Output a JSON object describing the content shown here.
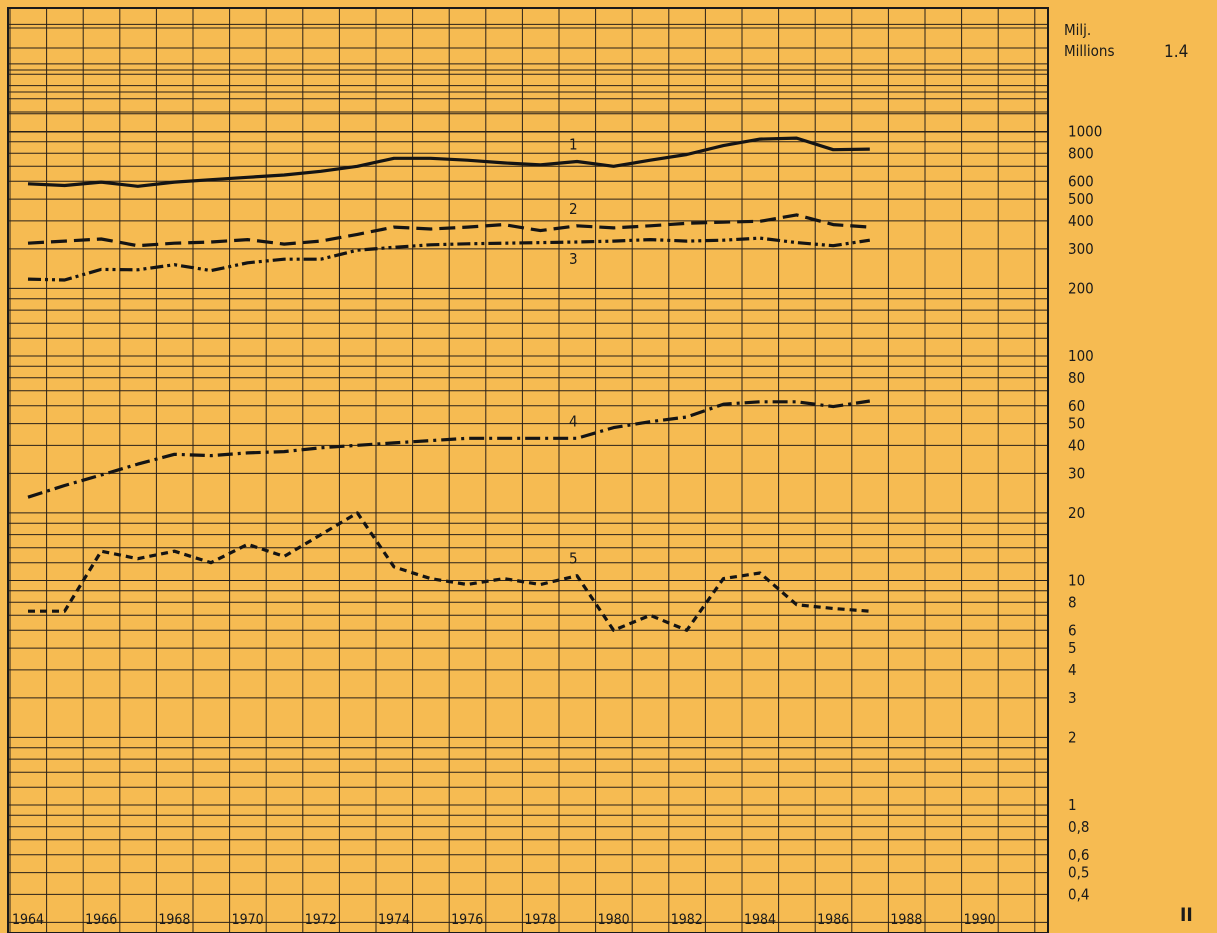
{
  "page": {
    "unit_fi": "Milj.",
    "unit_en": "Millions",
    "table_ref": "1.4",
    "section": "II"
  },
  "chart_data": {
    "type": "line",
    "title": "",
    "xlabel": "",
    "ylabel": "Milj. Millions",
    "yscale": "log",
    "xlim": [
      1964,
      1991
    ],
    "ylim": [
      0.3,
      3000
    ],
    "grid": true,
    "x_tick_labels": [
      "1964",
      "1966",
      "1968",
      "1970",
      "1972",
      "1974",
      "1976",
      "1978",
      "1980",
      "1982",
      "1984",
      "1986",
      "1988",
      "1990"
    ],
    "y_tick_labels": [
      {
        "value": 1000,
        "label": "1000"
      },
      {
        "value": 800,
        "label": "800"
      },
      {
        "value": 600,
        "label": "600"
      },
      {
        "value": 500,
        "label": "500"
      },
      {
        "value": 400,
        "label": "400"
      },
      {
        "value": 300,
        "label": "300"
      },
      {
        "value": 200,
        "label": "200"
      },
      {
        "value": 100,
        "label": "100"
      },
      {
        "value": 80,
        "label": "80"
      },
      {
        "value": 60,
        "label": "60"
      },
      {
        "value": 50,
        "label": "50"
      },
      {
        "value": 40,
        "label": "40"
      },
      {
        "value": 30,
        "label": "30"
      },
      {
        "value": 20,
        "label": "20"
      },
      {
        "value": 10,
        "label": "10"
      },
      {
        "value": 8,
        "label": "8"
      },
      {
        "value": 6,
        "label": "6"
      },
      {
        "value": 5,
        "label": "5"
      },
      {
        "value": 4,
        "label": "4"
      },
      {
        "value": 3,
        "label": "3"
      },
      {
        "value": 2,
        "label": "2"
      },
      {
        "value": 1,
        "label": "1"
      },
      {
        "value": 0.8,
        "label": "0,8"
      },
      {
        "value": 0.6,
        "label": "0,6"
      },
      {
        "value": 0.5,
        "label": "0,5"
      },
      {
        "value": 0.4,
        "label": "0,4"
      }
    ],
    "x": [
      1964,
      1965,
      1966,
      1967,
      1968,
      1969,
      1970,
      1971,
      1972,
      1973,
      1974,
      1975,
      1976,
      1977,
      1978,
      1979,
      1980,
      1981,
      1982,
      1983,
      1984,
      1985,
      1986,
      1987
    ],
    "series": [
      {
        "name": "1",
        "style": "solid",
        "label_at": 1978.9,
        "values": [
          585,
          575,
          595,
          570,
          595,
          610,
          625,
          640,
          665,
          700,
          760,
          760,
          745,
          725,
          710,
          735,
          700,
          745,
          790,
          865,
          925,
          935,
          830,
          835
        ]
      },
      {
        "name": "2",
        "style": "dashed",
        "label_at": 1978.9,
        "values": [
          318,
          325,
          332,
          310,
          318,
          322,
          330,
          315,
          325,
          348,
          375,
          368,
          375,
          385,
          362,
          380,
          372,
          380,
          390,
          395,
          398,
          425,
          385,
          375
        ]
      },
      {
        "name": "3",
        "style": "dashdotdot",
        "label_at": 1978.9,
        "values": [
          220,
          218,
          243,
          242,
          255,
          240,
          260,
          270,
          270,
          296,
          305,
          313,
          316,
          318,
          320,
          322,
          325,
          330,
          325,
          328,
          335,
          320,
          310,
          328
        ]
      },
      {
        "name": "4",
        "style": "dashdot",
        "label_at": 1978.9,
        "values": [
          23.5,
          26.5,
          29.5,
          33,
          36.5,
          36,
          37,
          37.5,
          39,
          40,
          41,
          42,
          43,
          43,
          43,
          43,
          48,
          51,
          53.5,
          61,
          62.5,
          62.5,
          59.5,
          63
        ]
      },
      {
        "name": "5",
        "style": "shortdash",
        "label_at": 1978.9,
        "values": [
          7.3,
          7.3,
          13.5,
          12.5,
          13.5,
          12,
          14.5,
          12.8,
          16,
          20,
          11.5,
          10.2,
          9.6,
          10.2,
          9.6,
          10.5,
          6,
          7,
          6,
          10.2,
          10.8,
          7.8,
          7.5,
          7.3
        ]
      }
    ]
  }
}
